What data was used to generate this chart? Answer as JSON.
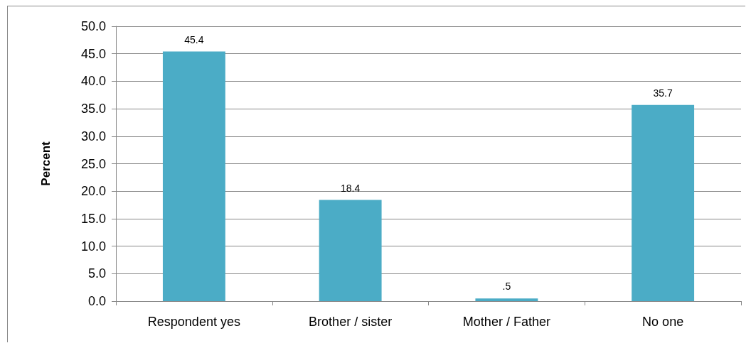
{
  "chart_data": {
    "type": "bar",
    "ylabel": "Percent",
    "categories": [
      "Respondent yes",
      "Brother / sister",
      "Mother / Father",
      "No one"
    ],
    "values": [
      45.4,
      18.4,
      0.5,
      35.7
    ],
    "value_labels": [
      "45.4",
      "18.4",
      ".5",
      "35.7"
    ],
    "color": "#4bacc6",
    "ylim": [
      0,
      50
    ],
    "yticks": [
      {
        "value": 0,
        "label": "0.0"
      },
      {
        "value": 5,
        "label": "5.0"
      },
      {
        "value": 10,
        "label": "10.0"
      },
      {
        "value": 15,
        "label": "15.0"
      },
      {
        "value": 20,
        "label": "20.0"
      },
      {
        "value": 25,
        "label": "25.0"
      },
      {
        "value": 30,
        "label": "30.0"
      },
      {
        "value": 35,
        "label": "35.0"
      },
      {
        "value": 40,
        "label": "40.0"
      },
      {
        "value": 45,
        "label": "45.0"
      },
      {
        "value": 50,
        "label": "50.0"
      }
    ],
    "grid": "y"
  }
}
